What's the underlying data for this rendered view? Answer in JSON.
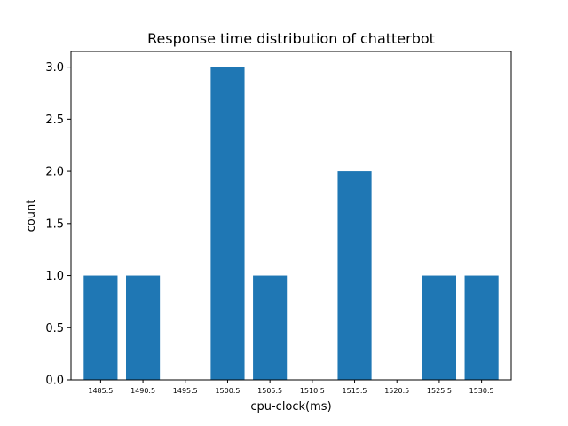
{
  "chart_data": {
    "type": "bar",
    "title": "Response time distribution of chatterbot",
    "xlabel": "cpu-clock(ms)",
    "ylabel": "count",
    "x": [
      1485.5,
      1490.5,
      1500.5,
      1505.5,
      1515.5,
      1525.5,
      1530.5
    ],
    "values": [
      1,
      1,
      3,
      1,
      2,
      1,
      1
    ],
    "bar_width": 4,
    "xlim": [
      1482.0,
      1534.0
    ],
    "ylim": [
      0,
      3.15
    ],
    "xticks": [
      "1485.5",
      "1490.5",
      "1495.5",
      "1500.5",
      "1505.5",
      "1510.5",
      "1515.5",
      "1520.5",
      "1525.5",
      "1530.5"
    ],
    "yticks": [
      "0.0",
      "0.5",
      "1.0",
      "1.5",
      "2.0",
      "2.5",
      "3.0"
    ],
    "grid": false,
    "color": "#1f77b4"
  }
}
